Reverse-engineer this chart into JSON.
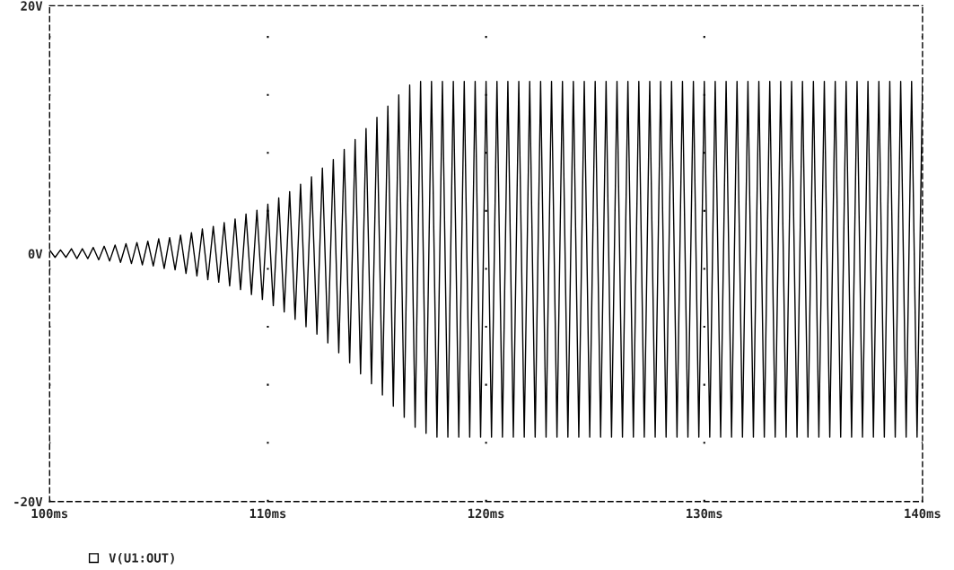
{
  "chart_data": {
    "type": "line",
    "xlim": [
      100,
      140
    ],
    "ylim": [
      -20,
      20
    ],
    "xticks": [
      {
        "value": 100,
        "label": "100ms"
      },
      {
        "value": 110,
        "label": "110ms"
      },
      {
        "value": 120,
        "label": "120ms"
      },
      {
        "value": 130,
        "label": "130ms"
      },
      {
        "value": 140,
        "label": "140ms"
      }
    ],
    "yticks": [
      {
        "value": -20,
        "label": "-20V"
      },
      {
        "value": 0,
        "label": "0V"
      },
      {
        "value": 20,
        "label": "20V"
      }
    ],
    "grid": "x",
    "legend": "bottom left",
    "series": [
      {
        "name": "V(U1:OUT)",
        "color": "#000000",
        "x": [
          100,
          100.25,
          100.5,
          100.75,
          101,
          101.25,
          101.5,
          101.75,
          102,
          102.25,
          102.5,
          102.75,
          103,
          103.25,
          103.5,
          103.75,
          104,
          104.25,
          104.5,
          104.75,
          105,
          105.25,
          105.5,
          105.75,
          106,
          106.25,
          106.5,
          106.75,
          107,
          107.25,
          107.5,
          107.75,
          108,
          108.25,
          108.5,
          108.75,
          109,
          109.25,
          109.5,
          109.75,
          110,
          110.25,
          110.5,
          110.75,
          111,
          111.25,
          111.5,
          111.75,
          112,
          112.25,
          112.5,
          112.75,
          113,
          113.25,
          113.5,
          113.75,
          114,
          114.25,
          114.5,
          114.75,
          115,
          115.25,
          115.5,
          115.75,
          116,
          116.25,
          116.5,
          116.75,
          117,
          117.25,
          117.5,
          117.75,
          118,
          118.25,
          118.5,
          118.75,
          119,
          119.25,
          119.5,
          119.75,
          120,
          120.25,
          120.5,
          120.75,
          121,
          121.25,
          121.5,
          121.75,
          122,
          122.25,
          122.5,
          122.75,
          123,
          123.25,
          123.5,
          123.75,
          124,
          124.25,
          124.5,
          124.75,
          125,
          125.25,
          125.5,
          125.75,
          126,
          126.25,
          126.5,
          126.75,
          127,
          127.25,
          127.5,
          127.75,
          128,
          128.25,
          128.5,
          128.75,
          129,
          129.25,
          129.5,
          129.75,
          130,
          130.25,
          130.5,
          130.75,
          131,
          131.25,
          131.5,
          131.75,
          132,
          132.25,
          132.5,
          132.75,
          133,
          133.25,
          133.5,
          133.75,
          134,
          134.25,
          134.5,
          134.75,
          135,
          135.25,
          135.5,
          135.75,
          136,
          136.25,
          136.5,
          136.75,
          137,
          137.25,
          137.5,
          137.75,
          138,
          138.25,
          138.5,
          138.75,
          139,
          139.25,
          139.5,
          139.75,
          140
        ],
        "values": [
          0.3,
          -0.3,
          0.3,
          -0.3,
          0.4,
          -0.4,
          0.4,
          -0.4,
          0.5,
          -0.5,
          0.6,
          -0.6,
          0.7,
          -0.7,
          0.8,
          -0.8,
          0.9,
          -0.9,
          1.0,
          -1.0,
          1.2,
          -1.2,
          1.3,
          -1.3,
          1.5,
          -1.6,
          1.7,
          -1.8,
          2.0,
          -2.1,
          2.2,
          -2.3,
          2.5,
          -2.6,
          2.8,
          -2.9,
          3.2,
          -3.3,
          3.5,
          -3.7,
          4.0,
          -4.2,
          4.5,
          -4.7,
          5.0,
          -5.3,
          5.6,
          -5.9,
          6.2,
          -6.5,
          6.9,
          -7.2,
          7.6,
          -8.0,
          8.4,
          -8.8,
          9.2,
          -9.7,
          10.1,
          -10.5,
          11.0,
          -11.4,
          11.9,
          -12.3,
          12.8,
          -13.2,
          13.6,
          -14.0,
          13.9,
          -14.5,
          13.9,
          -14.8,
          13.9,
          -14.8,
          13.9,
          -14.8,
          13.9,
          -14.8,
          13.9,
          -14.8,
          13.9,
          -14.8,
          13.9,
          -14.8,
          13.9,
          -14.8,
          13.9,
          -14.8,
          13.9,
          -14.8,
          13.9,
          -14.8,
          13.9,
          -14.8,
          13.9,
          -14.8,
          13.9,
          -14.8,
          13.9,
          -14.8,
          13.9,
          -14.8,
          13.9,
          -14.8,
          13.9,
          -14.8,
          13.9,
          -14.8,
          13.9,
          -14.8,
          13.9,
          -14.8,
          13.9,
          -14.8,
          13.9,
          -14.8,
          13.9,
          -14.8,
          13.9,
          -14.8,
          13.9,
          -14.8,
          13.9,
          -14.8,
          13.9,
          -14.8,
          13.9,
          -14.8,
          13.9,
          -14.8,
          13.9,
          -14.8,
          13.9,
          -14.8,
          13.9,
          -14.8,
          13.9,
          -14.8,
          13.9,
          -14.8,
          13.9,
          -14.8,
          13.9,
          -14.8,
          13.9,
          -14.8,
          13.9,
          -14.8,
          13.9,
          -14.8,
          13.9,
          -14.8,
          13.9,
          -14.8,
          13.9,
          -14.8,
          13.9,
          -14.8,
          13.9,
          -14.8,
          13.9
        ]
      }
    ]
  }
}
